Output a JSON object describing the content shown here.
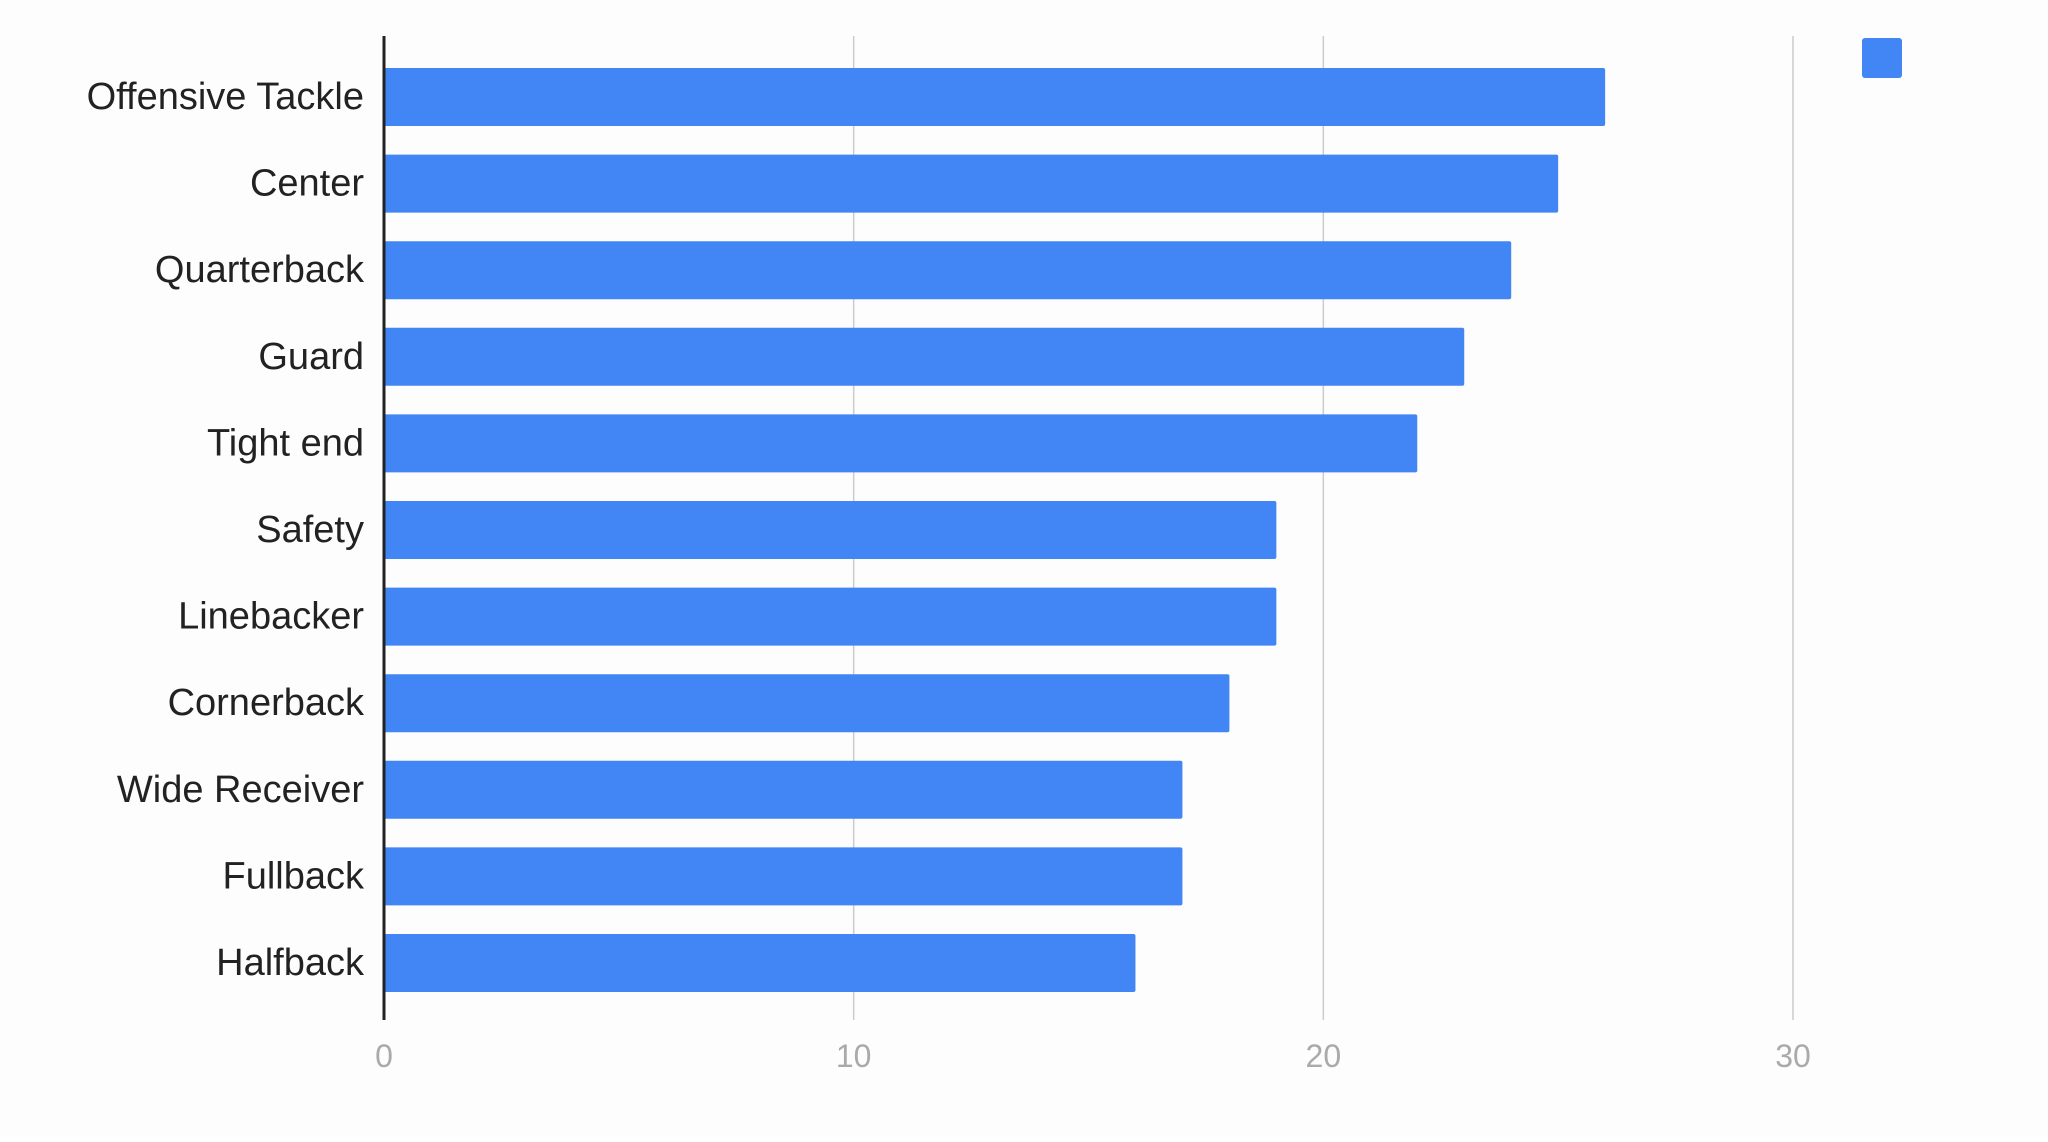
{
  "chart_data": {
    "type": "bar",
    "orientation": "horizontal",
    "title": "",
    "xlabel": "",
    "ylabel": "",
    "categories": [
      "Offensive Tackle",
      "Center",
      "Quarterback",
      "Guard",
      "Tight end",
      "Safety",
      "Linebacker",
      "Cornerback",
      "Wide Receiver",
      "Fullback",
      "Halfback"
    ],
    "values": [
      26,
      25,
      24,
      23,
      22,
      19,
      19,
      18,
      17,
      17,
      16
    ],
    "xlim": [
      0,
      30
    ],
    "x_ticks": [
      0,
      10,
      20,
      30
    ],
    "x_tick_labels": [
      "0",
      "10",
      "20",
      "30"
    ],
    "grid": true,
    "legend": {
      "placement": "top-right",
      "entries": [
        ""
      ]
    },
    "colors": {
      "bar": "#4285F4",
      "axis": "#222222",
      "grid": "#CCCCCC",
      "tick_label": "#AAAAAA",
      "category_label": "#222222"
    }
  }
}
